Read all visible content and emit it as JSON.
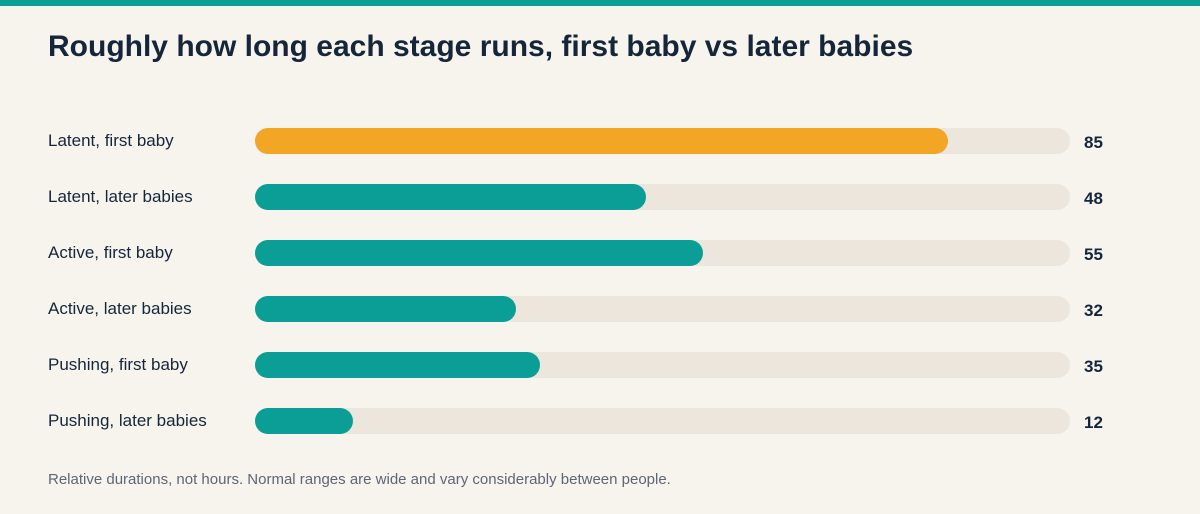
{
  "title": "Roughly how long each stage runs, first baby vs later babies",
  "footnote": "Relative durations, not hours. Normal ranges are wide and vary considerably between people.",
  "colors": {
    "top_bar": "#0b9e96",
    "highlight": "#f3a626",
    "bar": "#0b9e96",
    "track": "#ede6dc",
    "background": "#f7f4ee"
  },
  "chart_data": {
    "type": "bar",
    "orientation": "horizontal",
    "xlim": [
      0,
      100
    ],
    "categories": [
      "Latent, first baby",
      "Latent, later babies",
      "Active, first baby",
      "Active, later babies",
      "Pushing, first baby",
      "Pushing, later babies"
    ],
    "values": [
      85,
      48,
      55,
      32,
      35,
      12
    ],
    "highlighted_index": 0
  }
}
